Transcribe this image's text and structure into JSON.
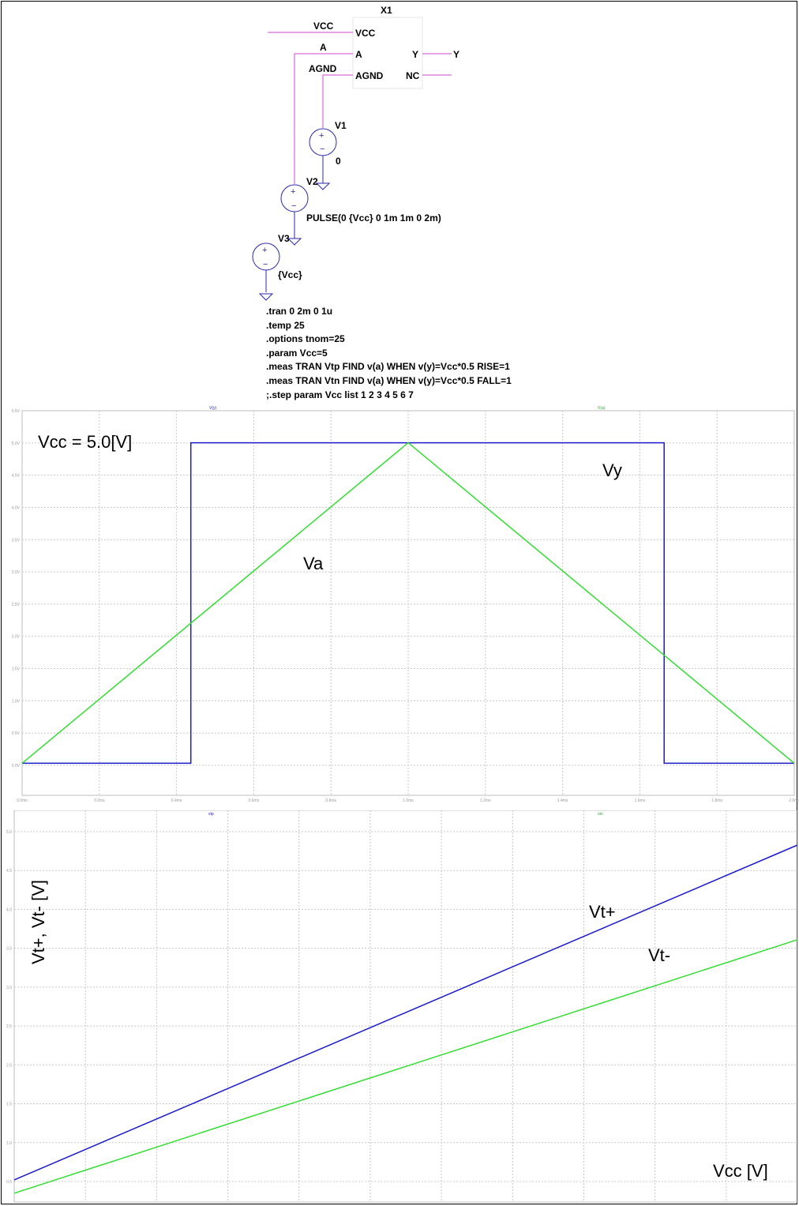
{
  "schematic": {
    "component_name": "X1",
    "wires": {
      "vcc": "VCC",
      "a": "A",
      "agnd": "AGND"
    },
    "pins_left": [
      "VCC",
      "A",
      "AGND"
    ],
    "pins_right": [
      "Y",
      "NC"
    ],
    "out_net": "Y",
    "v1": {
      "name": "V1",
      "value": "0"
    },
    "v2": {
      "name": "V2",
      "value": "PULSE(0 {Vcc} 0 1m 1m 0 2m)"
    },
    "v3": {
      "name": "V3",
      "value": "{Vcc}"
    },
    "directives": [
      ".tran 0 2m 0 1u",
      ".temp 25",
      ".options tnom=25",
      ".param Vcc=5",
      ".meas TRAN Vtp FIND v(a) WHEN v(y)=Vcc*0.5 RISE=1",
      ".meas TRAN Vtn FIND v(a) WHEN v(y)=Vcc*0.5 FALL=1",
      ";.step param Vcc list 1 2 3 4 5 6 7"
    ]
  },
  "colors": {
    "blue": "#1a1acc",
    "green": "#33dd33",
    "wire": "#d96ad9",
    "component": "#2a2aaa"
  },
  "chart_data": [
    {
      "type": "line",
      "annotation": "Vcc = 5.0[V]",
      "legend": [
        "V(y)",
        "V(a)"
      ],
      "xticks": [
        "0.0ms",
        "0.2ms",
        "0.4ms",
        "0.6ms",
        "0.8ms",
        "1.0ms",
        "1.2ms",
        "1.4ms",
        "1.6ms",
        "1.8ms",
        "2.0ms"
      ],
      "yticks": [
        "0.0V",
        "0.5V",
        "1.0V",
        "1.5V",
        "2.0V",
        "2.5V",
        "3.0V",
        "3.5V",
        "4.0V",
        "4.5V",
        "5.0V",
        "5.5V"
      ],
      "xlim": [
        0,
        2.0
      ],
      "ylim": [
        -0.5,
        5.5
      ],
      "grid": true,
      "series": [
        {
          "name": "Vy",
          "color": "#1a1acc",
          "x": [
            0,
            0.437,
            0.437,
            1.663,
            1.663,
            2.0
          ],
          "y": [
            0,
            0,
            5,
            5,
            0,
            0
          ]
        },
        {
          "name": "Va",
          "color": "#33dd33",
          "x": [
            0,
            1.0,
            2.0
          ],
          "y": [
            0,
            5,
            0
          ]
        }
      ]
    },
    {
      "type": "line",
      "ylabel": "Vt+, Vt- [V]",
      "xlabel": "Vcc [V]",
      "legend": [
        "vtp",
        "vtn"
      ],
      "xticks": [
        "1.0",
        "1.5",
        "2.0",
        "2.5",
        "3.0",
        "3.5",
        "4.0",
        "4.5",
        "5.0",
        "5.5",
        "6.0",
        "7.0"
      ],
      "yticks": [
        "0.5",
        "1.0",
        "1.5",
        "2.0",
        "2.5",
        "3.0",
        "3.5",
        "4.0",
        "4.5",
        "5.0"
      ],
      "xlim": [
        1,
        7
      ],
      "ylim": [
        0.0,
        5.3
      ],
      "grid": true,
      "series": [
        {
          "name": "Vt+",
          "color": "#1a1acc",
          "x": [
            1,
            7
          ],
          "y": [
            0.3,
            4.83
          ]
        },
        {
          "name": "Vt-",
          "color": "#33dd33",
          "x": [
            1,
            7
          ],
          "y": [
            0.12,
            3.55
          ]
        }
      ]
    }
  ]
}
